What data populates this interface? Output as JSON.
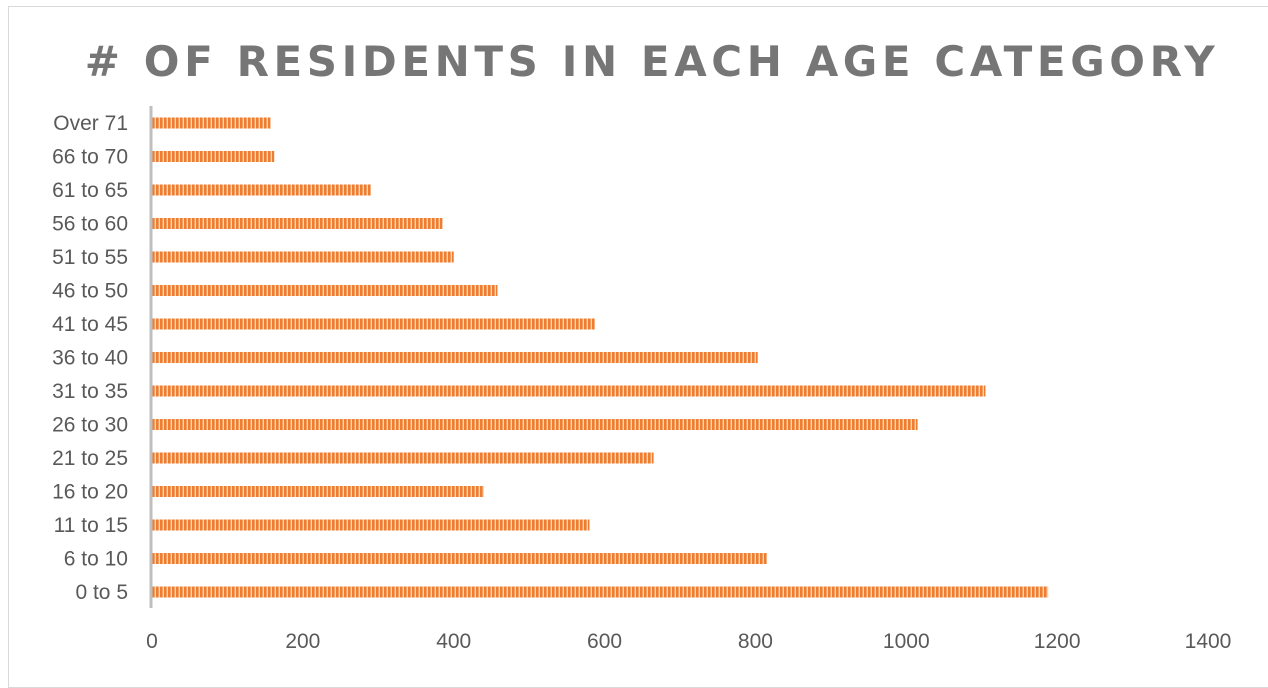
{
  "chart_data": {
    "type": "bar",
    "orientation": "horizontal",
    "title": "# OF RESIDENTS IN EACH AGE CATEGORY",
    "categories": [
      "0 to 5",
      "6 to 10",
      "11 to 15",
      "16 to 20",
      "21 to 25",
      "26 to 30",
      "31 to 35",
      "36 to 40",
      "41 to 45",
      "46 to 50",
      "51 to 55",
      "56 to 60",
      "61 to 65",
      "66 to 70",
      "Over 71"
    ],
    "values": [
      1188,
      815,
      580,
      440,
      665,
      1015,
      1105,
      803,
      587,
      458,
      400,
      385,
      290,
      162,
      157
    ],
    "xlim": [
      0,
      1400
    ],
    "xticks": [
      0,
      200,
      400,
      600,
      800,
      1000,
      1200,
      1400
    ],
    "grid": false,
    "legend": "none",
    "bar_color": "#ED7D31",
    "bar_stripe_color": "#FFD2B0"
  }
}
